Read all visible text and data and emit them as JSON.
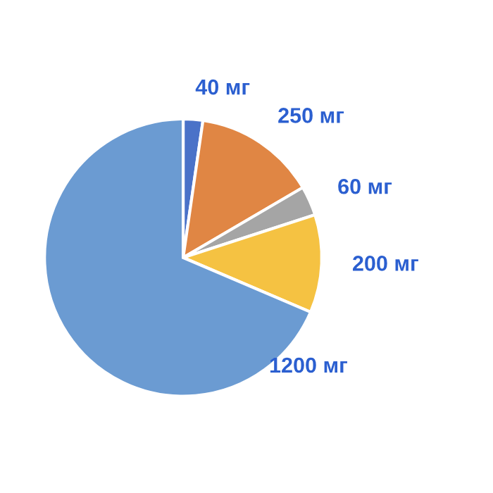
{
  "chart_data": {
    "type": "pie",
    "categories": [
      "40 мг",
      "250 мг",
      "60 мг",
      "200 мг",
      "1200 мг"
    ],
    "values": [
      40,
      250,
      60,
      200,
      1200
    ],
    "colors": [
      "#4a72c8",
      "#e08644",
      "#a5a5a5",
      "#f5c242",
      "#6b9bd2"
    ],
    "legend": false
  }
}
